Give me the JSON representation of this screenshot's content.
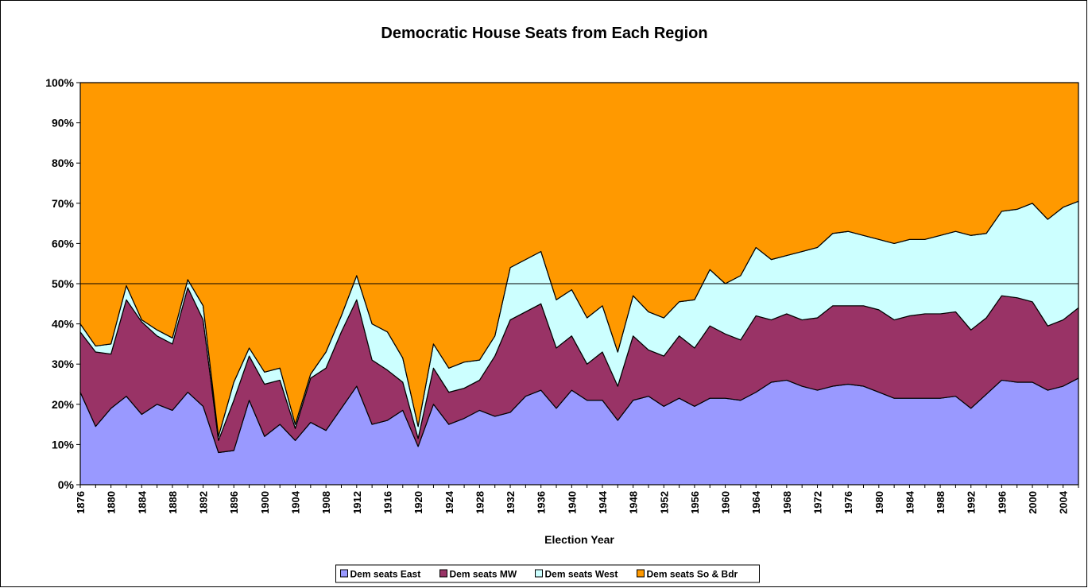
{
  "chart_data": {
    "type": "stacked_area_100",
    "title": "Democratic House Seats from Each Region",
    "x_label": "Election Year",
    "categories": [
      "1876",
      null,
      "1880",
      null,
      "1884",
      null,
      "1888",
      null,
      "1892",
      null,
      "1896",
      null,
      "1900",
      null,
      "1904",
      null,
      "1908",
      null,
      "1912",
      null,
      "1916",
      null,
      "1920",
      null,
      "1924",
      null,
      "1928",
      null,
      "1932",
      null,
      "1936",
      null,
      "1940",
      null,
      "1944",
      null,
      "1948",
      null,
      "1952",
      null,
      "1956",
      null,
      "1960",
      null,
      "1964",
      null,
      "1968",
      null,
      "1972",
      null,
      "1976",
      null,
      "1980",
      null,
      "1984",
      null,
      "1988",
      null,
      "1992",
      null,
      "1996",
      null,
      "2000",
      null,
      "2004",
      null
    ],
    "ylim": [
      0,
      100
    ],
    "yticks": [
      {
        "value": 0,
        "label": "0%"
      },
      {
        "value": 10,
        "label": "10%"
      },
      {
        "value": 20,
        "label": "20%"
      },
      {
        "value": 30,
        "label": "30%"
      },
      {
        "value": 40,
        "label": "40%"
      },
      {
        "value": 50,
        "label": "50%"
      },
      {
        "value": 60,
        "label": "60%"
      },
      {
        "value": 70,
        "label": "70%"
      },
      {
        "value": 80,
        "label": "80%"
      },
      {
        "value": 90,
        "label": "90%"
      },
      {
        "value": 100,
        "label": "100%"
      }
    ],
    "reference_line": 50,
    "legend": "bottom",
    "series": [
      {
        "name": "Dem seats East",
        "color": "#9999ff",
        "values": [
          23,
          14.5,
          19,
          22,
          17.5,
          20,
          18.5,
          23,
          19.5,
          8,
          8.5,
          21,
          12,
          15,
          11,
          15.5,
          13.5,
          19,
          24.5,
          15,
          16,
          18.5,
          9.5,
          20,
          15,
          16.5,
          18.5,
          17,
          18,
          22,
          23.5,
          19,
          23.5,
          21,
          21,
          16,
          21,
          22,
          19.5,
          21.5,
          19.5,
          21.5,
          21.5,
          21,
          23,
          25.5,
          26,
          24.5,
          23.5,
          24.5,
          25,
          24.5,
          23,
          21.5,
          21.5,
          21.5,
          21.5,
          22,
          19,
          22.5,
          26,
          25.5,
          25.5,
          23.5,
          24.5,
          26.5
        ]
      },
      {
        "name": "Dem seats MW",
        "color": "#993366",
        "values": [
          15,
          18.5,
          13.5,
          24,
          23,
          17,
          16.5,
          26,
          21.5,
          3,
          12.5,
          11,
          13,
          11,
          3,
          11,
          15.5,
          19,
          21.5,
          16,
          12.5,
          7,
          2,
          9,
          8,
          7.5,
          7.5,
          15,
          23,
          21,
          21.5,
          15,
          13.5,
          9,
          12,
          8.5,
          16,
          11.5,
          12.5,
          15.5,
          14.5,
          18,
          16,
          15,
          19,
          15.5,
          16.5,
          16.5,
          18,
          20,
          19.5,
          20,
          20.5,
          19.5,
          20.5,
          21,
          21,
          21,
          19.5,
          19,
          21,
          21,
          20,
          16,
          16.5,
          17.5
        ]
      },
      {
        "name": "Dem seats West",
        "color": "#ccffff",
        "values": [
          2,
          1.5,
          2.5,
          3.5,
          0.5,
          1.5,
          1.5,
          2,
          3.5,
          1,
          4.5,
          2,
          3,
          3,
          1,
          1,
          4,
          4,
          6,
          9,
          9.5,
          6,
          3,
          6,
          6,
          6.5,
          5,
          5,
          13,
          13,
          13,
          12,
          11.5,
          11.5,
          11.5,
          8.5,
          10,
          9.5,
          9.5,
          8.5,
          12,
          14,
          12.5,
          16,
          17,
          15,
          14.5,
          17,
          17.5,
          18,
          18.5,
          17.5,
          17.5,
          19,
          19,
          18.5,
          19.5,
          20,
          23.5,
          21,
          21,
          22,
          24.5,
          26.5,
          28,
          26.5
        ]
      },
      {
        "name": "Dem seats So & Bdr",
        "color": "#ff9900",
        "values": [
          60,
          65.5,
          65,
          50.5,
          59,
          61.5,
          63.5,
          49,
          55.5,
          88,
          74.5,
          66,
          72,
          71,
          85,
          72.5,
          67,
          58,
          48,
          60,
          62,
          68.5,
          85.5,
          65,
          71,
          69.5,
          69,
          63,
          46,
          44,
          42,
          54,
          51.5,
          58.5,
          55.5,
          67,
          53,
          57,
          58.5,
          54.5,
          54,
          46.5,
          50,
          48,
          41,
          44,
          43,
          42,
          41,
          37.5,
          37,
          38,
          39,
          40,
          39,
          39,
          38,
          37,
          38,
          37.5,
          32,
          31.5,
          30,
          34,
          31,
          29.5
        ]
      }
    ]
  }
}
